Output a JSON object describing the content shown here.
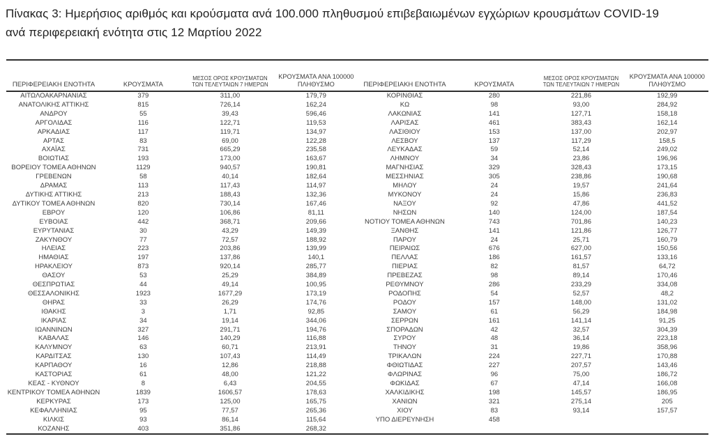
{
  "title": "Πίνακας 3:  Ημερήσιος αριθμός και κρούσματα ανά 100.000 πληθυσμού επιβεβαιωμένων εγχώριων κρουσμάτων COVID-19 ανά περιφερειακή ενότητα στις 12 Μαρτίου 2022",
  "colors": {
    "text": "#3c3c3c",
    "title": "#1f1f1f",
    "rule": "#2e2e2e",
    "bg": "#ffffff"
  },
  "table": {
    "headers": [
      [
        "ΠΕΡΙΦΕΡΕΙΑΚΗ ΕΝΟΤΗΤΑ"
      ],
      [
        "ΚΡΟΥΣΜΑΤΑ"
      ],
      [
        "ΜΕΣΟΣ ΟΡΟΣ ΚΡΟΥΣΜΑΤΩΝ",
        "ΤΩΝ ΤΕΛΕΥΤΑΙΩΝ 7 ΗΜΕΡΩΝ"
      ],
      [
        "ΚΡΟΥΣΜΑΤΑ ΑΝΑ 100000",
        "ΠΛΗΘΥΣΜΟ"
      ]
    ],
    "left_rows": [
      [
        "ΑΙΤΩΛΟΑΚΑΡΝΑΝΙΑΣ",
        "379",
        "311,00",
        "179,79"
      ],
      [
        "ΑΝΑΤΟΛΙΚΗΣ ΑΤΤΙΚΗΣ",
        "815",
        "726,14",
        "162,24"
      ],
      [
        "ΑΝΔΡΟΥ",
        "55",
        "39,43",
        "596,46"
      ],
      [
        "ΑΡΓΟΛΙΔΑΣ",
        "116",
        "122,71",
        "119,53"
      ],
      [
        "ΑΡΚΑΔΙΑΣ",
        "117",
        "119,71",
        "134,97"
      ],
      [
        "ΑΡΤΑΣ",
        "83",
        "69,00",
        "122,28"
      ],
      [
        "ΑΧΑΪΑΣ",
        "731",
        "665,29",
        "235,58"
      ],
      [
        "ΒΟΙΩΤΙΑΣ",
        "193",
        "173,00",
        "163,67"
      ],
      [
        "ΒΟΡΕΙΟΥ ΤΟΜΕΑ ΑΘΗΝΩΝ",
        "1129",
        "940,57",
        "190,81"
      ],
      [
        "ΓΡΕΒΕΝΩΝ",
        "58",
        "40,14",
        "182,64"
      ],
      [
        "ΔΡΑΜΑΣ",
        "113",
        "117,43",
        "114,97"
      ],
      [
        "ΔΥΤΙΚΗΣ ΑΤΤΙΚΗΣ",
        "213",
        "188,43",
        "132,36"
      ],
      [
        "ΔΥΤΙΚΟΥ ΤΟΜΕΑ ΑΘΗΝΩΝ",
        "820",
        "730,14",
        "167,46"
      ],
      [
        "ΕΒΡΟΥ",
        "120",
        "106,86",
        "81,11"
      ],
      [
        "ΕΥΒΟΙΑΣ",
        "442",
        "368,71",
        "209,66"
      ],
      [
        "ΕΥΡΥΤΑΝΙΑΣ",
        "30",
        "43,29",
        "149,39"
      ],
      [
        "ΖΑΚΥΝΘΟΥ",
        "77",
        "72,57",
        "188,92"
      ],
      [
        "ΗΛΕΙΑΣ",
        "223",
        "203,86",
        "139,99"
      ],
      [
        "ΗΜΑΘΙΑΣ",
        "197",
        "137,86",
        "140,1"
      ],
      [
        "ΗΡΑΚΛΕΙΟΥ",
        "873",
        "920,14",
        "285,77"
      ],
      [
        "ΘΑΣΟΥ",
        "53",
        "25,29",
        "384,89"
      ],
      [
        "ΘΕΣΠΡΩΤΙΑΣ",
        "44",
        "49,14",
        "100,95"
      ],
      [
        "ΘΕΣΣΑΛΟΝΙΚΗΣ",
        "1923",
        "1677,29",
        "173,19"
      ],
      [
        "ΘΗΡΑΣ",
        "33",
        "26,29",
        "174,76"
      ],
      [
        "ΙΘΑΚΗΣ",
        "3",
        "1,71",
        "92,85"
      ],
      [
        "ΙΚΑΡΙΑΣ",
        "34",
        "19,14",
        "344,06"
      ],
      [
        "ΙΩΑΝΝΙΝΩΝ",
        "327",
        "291,71",
        "194,76"
      ],
      [
        "ΚΑΒΑΛΑΣ",
        "146",
        "140,29",
        "116,88"
      ],
      [
        "ΚΑΛΥΜΝΟΥ",
        "63",
        "60,71",
        "213,91"
      ],
      [
        "ΚΑΡΔΙΤΣΑΣ",
        "130",
        "107,43",
        "114,49"
      ],
      [
        "ΚΑΡΠΑΘΟΥ",
        "16",
        "12,86",
        "218,88"
      ],
      [
        "ΚΑΣΤΟΡΙΑΣ",
        "61",
        "48,00",
        "121,22"
      ],
      [
        "ΚΕΑΣ - ΚΥΘΝΟΥ",
        "8",
        "6,43",
        "204,55"
      ],
      [
        "ΚΕΝΤΡΙΚΟΥ ΤΟΜΕΑ ΑΘΗΝΩΝ",
        "1839",
        "1606,57",
        "178,63"
      ],
      [
        "ΚΕΡΚΥΡΑΣ",
        "173",
        "125,00",
        "165,75"
      ],
      [
        "ΚΕΦΑΛΛΗΝΙΑΣ",
        "95",
        "77,57",
        "265,36"
      ],
      [
        "ΚΙΛΚΙΣ",
        "93",
        "86,14",
        "115,64"
      ],
      [
        "ΚΟΖΑΝΗΣ",
        "403",
        "351,86",
        "268,32"
      ]
    ],
    "right_rows": [
      [
        "ΚΟΡΙΝΘΙΑΣ",
        "280",
        "221,86",
        "192,99"
      ],
      [
        "ΚΩ",
        "98",
        "93,00",
        "284,92"
      ],
      [
        "ΛΑΚΩΝΙΑΣ",
        "141",
        "127,71",
        "158,18"
      ],
      [
        "ΛΑΡΙΣΑΣ",
        "461",
        "383,43",
        "162,14"
      ],
      [
        "ΛΑΣΙΘΙΟΥ",
        "153",
        "137,00",
        "202,97"
      ],
      [
        "ΛΕΣΒΟΥ",
        "137",
        "117,29",
        "158,5"
      ],
      [
        "ΛΕΥΚΑΔΑΣ",
        "59",
        "52,14",
        "249,02"
      ],
      [
        "ΛΗΜΝΟΥ",
        "34",
        "23,86",
        "196,96"
      ],
      [
        "ΜΑΓΝΗΣΙΑΣ",
        "329",
        "328,43",
        "173,15"
      ],
      [
        "ΜΕΣΣΗΝΙΑΣ",
        "305",
        "238,86",
        "190,68"
      ],
      [
        "ΜΗΛΟΥ",
        "24",
        "19,57",
        "241,64"
      ],
      [
        "ΜΥΚΟΝΟΥ",
        "24",
        "15,86",
        "236,83"
      ],
      [
        "ΝΑΞΟΥ",
        "92",
        "47,86",
        "441,52"
      ],
      [
        "ΝΗΣΩΝ",
        "140",
        "124,00",
        "187,54"
      ],
      [
        "ΝΟΤΙΟΥ ΤΟΜΕΑ ΑΘΗΝΩΝ",
        "743",
        "701,86",
        "140,23"
      ],
      [
        "ΞΑΝΘΗΣ",
        "141",
        "121,86",
        "126,77"
      ],
      [
        "ΠΑΡΟΥ",
        "24",
        "25,71",
        "160,79"
      ],
      [
        "ΠΕΙΡΑΙΩΣ",
        "676",
        "627,00",
        "150,56"
      ],
      [
        "ΠΕΛΛΑΣ",
        "186",
        "161,57",
        "133,16"
      ],
      [
        "ΠΙΕΡΙΑΣ",
        "82",
        "81,57",
        "64,72"
      ],
      [
        "ΠΡΕΒΕΖΑΣ",
        "98",
        "89,14",
        "170,46"
      ],
      [
        "ΡΕΘΥΜΝΟΥ",
        "286",
        "233,29",
        "334,08"
      ],
      [
        "ΡΟΔΟΠΗΣ",
        "54",
        "52,57",
        "48,2"
      ],
      [
        "ΡΟΔΟΥ",
        "157",
        "148,00",
        "131,02"
      ],
      [
        "ΣΑΜΟΥ",
        "61",
        "56,29",
        "184,98"
      ],
      [
        "ΣΕΡΡΩΝ",
        "161",
        "141,14",
        "91,25"
      ],
      [
        "ΣΠΟΡΑΔΩΝ",
        "42",
        "32,57",
        "304,39"
      ],
      [
        "ΣΥΡΟΥ",
        "48",
        "36,14",
        "223,18"
      ],
      [
        "ΤΗΝΟΥ",
        "31",
        "19,86",
        "358,96"
      ],
      [
        "ΤΡΙΚΑΛΩΝ",
        "224",
        "227,71",
        "170,88"
      ],
      [
        "ΦΘΙΩΤΙΔΑΣ",
        "227",
        "207,57",
        "143,46"
      ],
      [
        "ΦΛΩΡΙΝΑΣ",
        "96",
        "75,00",
        "186,72"
      ],
      [
        "ΦΩΚΙΔΑΣ",
        "67",
        "47,14",
        "166,08"
      ],
      [
        "ΧΑΛΚΙΔΙΚΗΣ",
        "198",
        "145,57",
        "186,95"
      ],
      [
        "ΧΑΝΙΩΝ",
        "321",
        "275,14",
        "205"
      ],
      [
        "ΧΙΟΥ",
        "83",
        "93,14",
        "157,57"
      ],
      [
        "ΥΠΟ ΔΙΕΡΕΥΝΗΣΗ",
        "458",
        "",
        ""
      ]
    ]
  }
}
